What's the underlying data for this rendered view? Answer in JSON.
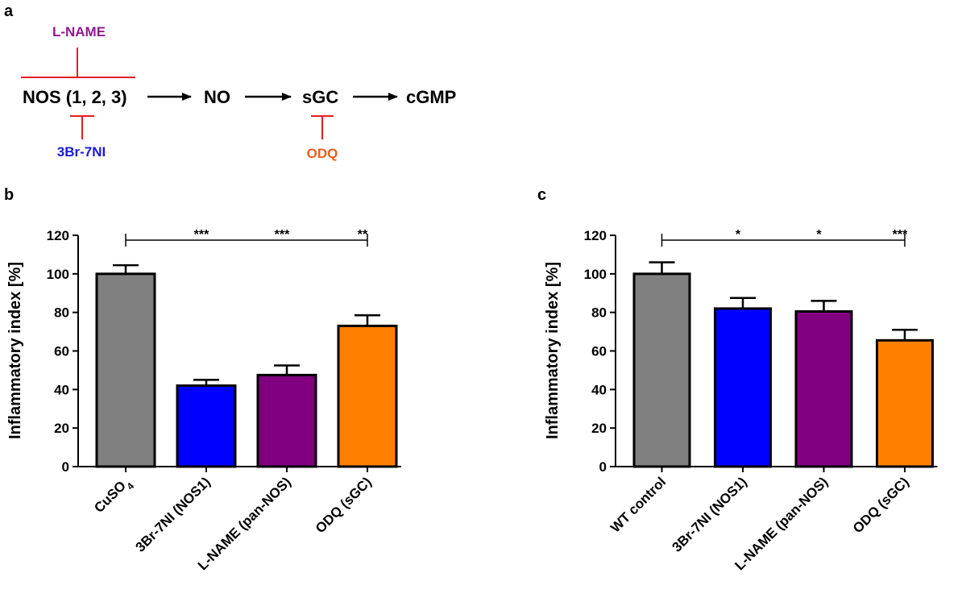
{
  "panels": {
    "a": "a",
    "b": "b",
    "c": "c"
  },
  "pathway": {
    "nodes": [
      "NOS (1, 2, 3)",
      "NO",
      "sGC",
      "cGMP"
    ],
    "inhibitors": [
      {
        "name": "L-NAME",
        "color": "#8e1b8e"
      },
      {
        "name": "3Br-7NI",
        "color": "#1a1adc"
      },
      {
        "name": "ODQ",
        "color": "#e8601c"
      }
    ],
    "inhibition_color": "#e0201c"
  },
  "chart_data": [
    {
      "type": "bar",
      "panel": "b",
      "ylabel": "Inflammatory index [%]",
      "ylim": [
        0,
        120
      ],
      "yticks": [
        0,
        20,
        40,
        60,
        80,
        100,
        120
      ],
      "categories": [
        "CuSO",
        "3Br-7NI (NOS1)",
        "L-NAME (pan-NOS)",
        "ODQ (sGC)"
      ],
      "category_subscripts": [
        "4",
        "",
        "",
        ""
      ],
      "values": [
        100,
        42,
        47.5,
        73
      ],
      "errors": [
        4.5,
        3,
        5,
        5.5
      ],
      "colors": [
        "#808080",
        "#0000ff",
        "#800080",
        "#ff8000"
      ],
      "significance": [
        "***",
        "***",
        "**"
      ]
    },
    {
      "type": "bar",
      "panel": "c",
      "ylabel": "Inflammatory index [%]",
      "ylim": [
        0,
        120
      ],
      "yticks": [
        0,
        20,
        40,
        60,
        80,
        100,
        120
      ],
      "categories": [
        "WT control",
        "3Br-7NI (NOS1)",
        "L-NAME (pan-NOS)",
        "ODQ (sGC)"
      ],
      "category_subscripts": [
        "",
        "",
        "",
        ""
      ],
      "values": [
        100,
        82,
        80.5,
        65.5
      ],
      "errors": [
        6,
        5.5,
        5.5,
        5.5
      ],
      "colors": [
        "#808080",
        "#0000ff",
        "#800080",
        "#ff8000"
      ],
      "significance": [
        "*",
        "*",
        "***"
      ]
    }
  ]
}
